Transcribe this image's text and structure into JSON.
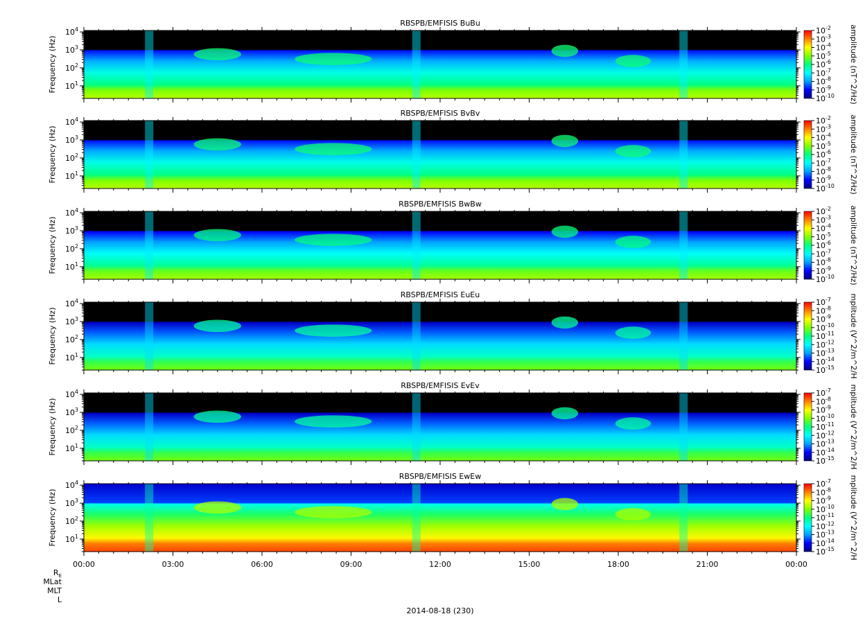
{
  "chart_data": [
    {
      "type": "heatmap",
      "title": "RBSPB/EMFISIS  BuBu",
      "ylabel": "Frequency (Hz)",
      "zlabel": "amplitude (nT^2/Hz)",
      "yscale": "log",
      "ylim": [
        2,
        12000
      ],
      "yticks": [
        "10^1",
        "10^2",
        "10^3",
        "10^4"
      ],
      "zticks": [
        "10^-2",
        "10^-3",
        "10^-4",
        "10^-5",
        "10^-6",
        "10^-7",
        "10^-8",
        "10^-9",
        "10^-10"
      ],
      "floor": 0.04
    },
    {
      "type": "heatmap",
      "title": "RBSPB/EMFISIS  BvBv",
      "ylabel": "Frequency (Hz)",
      "zlabel": "amplitude (nT^2/Hz)",
      "yscale": "log",
      "ylim": [
        2,
        12000
      ],
      "yticks": [
        "10^1",
        "10^2",
        "10^3",
        "10^4"
      ],
      "zticks": [
        "10^-2",
        "10^-3",
        "10^-4",
        "10^-5",
        "10^-6",
        "10^-7",
        "10^-8",
        "10^-9",
        "10^-10"
      ],
      "floor": 0.04
    },
    {
      "type": "heatmap",
      "title": "RBSPB/EMFISIS  BwBw",
      "ylabel": "Frequency (Hz)",
      "zlabel": "amplitude (nT^2/Hz)",
      "yscale": "log",
      "ylim": [
        2,
        12000
      ],
      "yticks": [
        "10^1",
        "10^2",
        "10^3",
        "10^4"
      ],
      "zticks": [
        "10^-2",
        "10^-3",
        "10^-4",
        "10^-5",
        "10^-6",
        "10^-7",
        "10^-8",
        "10^-9",
        "10^-10"
      ],
      "floor": 0.0
    },
    {
      "type": "heatmap",
      "title": "RBSPB/EMFISIS  EuEu",
      "ylabel": "Frequency (Hz)",
      "zlabel": "mplitude (V^2/m^2/H",
      "yscale": "log",
      "ylim": [
        2,
        12000
      ],
      "yticks": [
        "10^1",
        "10^2",
        "10^3",
        "10^4"
      ],
      "zticks": [
        "10^-7",
        "10^-8",
        "10^-9",
        "10^-10",
        "10^-11",
        "10^-12",
        "10^-13",
        "10^-14",
        "10^-15"
      ],
      "floor": -0.1
    },
    {
      "type": "heatmap",
      "title": "RBSPB/EMFISIS  EvEv",
      "ylabel": "Frequency (Hz)",
      "zlabel": "mplitude (V^2/m^2/H",
      "yscale": "log",
      "ylim": [
        2,
        12000
      ],
      "yticks": [
        "10^1",
        "10^2",
        "10^3",
        "10^4"
      ],
      "zticks": [
        "10^-7",
        "10^-8",
        "10^-9",
        "10^-10",
        "10^-11",
        "10^-12",
        "10^-13",
        "10^-14",
        "10^-15"
      ],
      "floor": -0.1
    },
    {
      "type": "heatmap",
      "title": "RBSPB/EMFISIS  EwEw",
      "ylabel": "Frequency (Hz)",
      "zlabel": "mplitude (V^2/m^2/H",
      "yscale": "log",
      "ylim": [
        2,
        12000
      ],
      "yticks": [
        "10^1",
        "10^2",
        "10^3",
        "10^4"
      ],
      "zticks": [
        "10^-7",
        "10^-8",
        "10^-9",
        "10^-10",
        "10^-11",
        "10^-12",
        "10^-13",
        "10^-14",
        "10^-15"
      ],
      "floor": 0.55
    }
  ],
  "x_axis": {
    "ticks": [
      "00:00",
      "03:00",
      "06:00",
      "09:00",
      "12:00",
      "15:00",
      "18:00",
      "21:00",
      "00:00"
    ],
    "range_hours": [
      0,
      24
    ],
    "date_label": "2014-08-18 (230)"
  },
  "ephemeris_labels": [
    "R_E",
    "MLat",
    "MLT",
    "L"
  ],
  "colormap": [
    "#000080",
    "#0000ff",
    "#00a0ff",
    "#00ffff",
    "#00ff80",
    "#80ff00",
    "#ffff00",
    "#ff8000",
    "#ff0000"
  ]
}
